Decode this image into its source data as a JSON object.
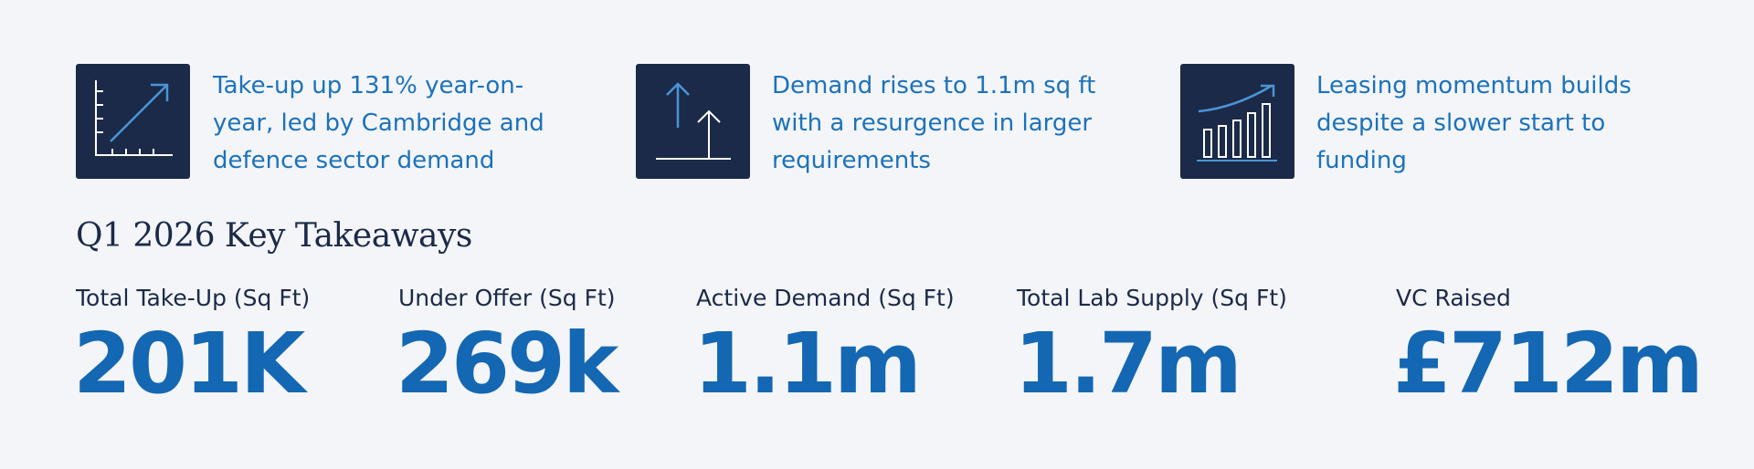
{
  "highlights": [
    {
      "text": "Take-up up 131% year-on-year, led by Cambridge and defence sector demand"
    },
    {
      "text": "Demand rises to 1.1m sq ft with a resurgence in larger requirements"
    },
    {
      "text": "Leasing momentum builds despite a slower start to funding"
    }
  ],
  "section_title": "Q1 2026 Key Takeaways",
  "stats": [
    {
      "label": "Total Take-Up (Sq Ft)",
      "value": "201K"
    },
    {
      "label": "Under Offer (Sq Ft)",
      "value": "269k"
    },
    {
      "label": "Active Demand (Sq Ft)",
      "value": "1.1m"
    },
    {
      "label": "Total Lab Supply (Sq Ft)",
      "value": "1.7m"
    },
    {
      "label": "VC Raised",
      "value": "£712m"
    }
  ]
}
